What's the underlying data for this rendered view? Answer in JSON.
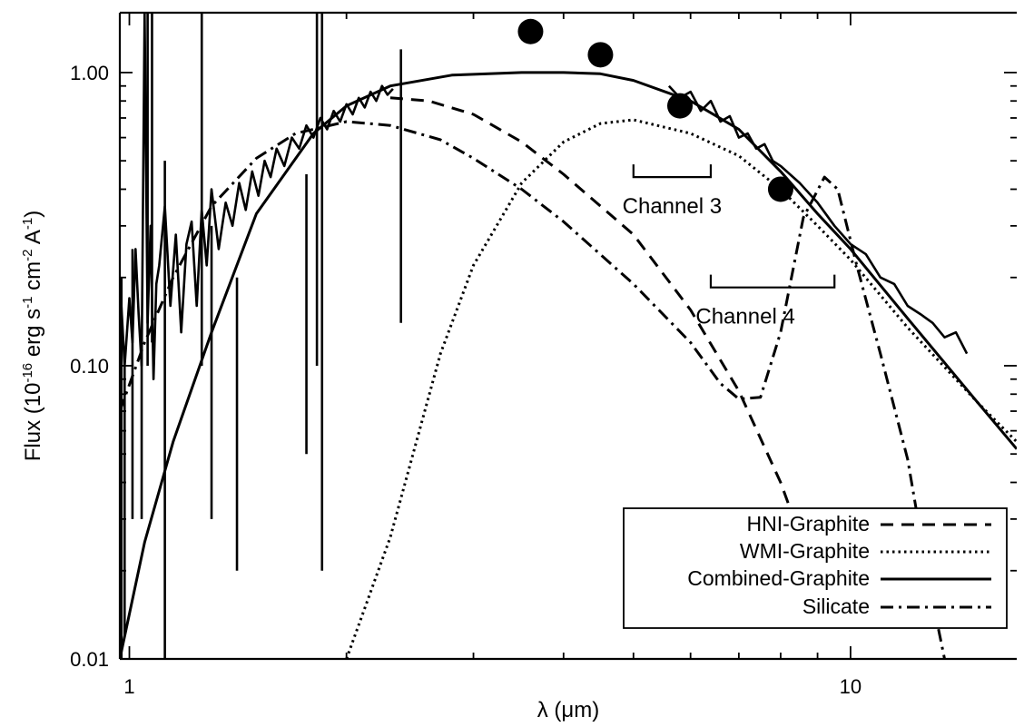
{
  "chart_data": {
    "type": "line",
    "title": "",
    "xlabel": "λ (μm)",
    "ylabel": "Flux (10",
    "ylabel_parts": {
      "base": "Flux (10",
      "exp1": "-16",
      "mid1": " erg s",
      "exp2": "-1",
      "mid2": " cm",
      "exp3": "-2",
      "mid3": " A",
      "exp4": "-1",
      "end": ")"
    },
    "x_scale": "log",
    "y_scale": "log",
    "xlim": [
      0.97,
      17
    ],
    "ylim": [
      0.01,
      1.6
    ],
    "x_ticks": [
      {
        "value": 1,
        "label": "1"
      },
      {
        "value": 10,
        "label": "10"
      }
    ],
    "y_ticks": [
      {
        "value": 0.01,
        "label": "0.01"
      },
      {
        "value": 0.1,
        "label": "0.10"
      },
      {
        "value": 1.0,
        "label": "1.00"
      }
    ],
    "grid": false,
    "legend_position": "bottom-right",
    "series": [
      {
        "name": "HNI-Graphite",
        "dash": "dashed",
        "x": [
          2.3,
          2.6,
          3.0,
          3.5,
          4.0,
          5.0,
          6.0,
          7.0,
          8.0,
          9.0
        ],
        "y": [
          0.82,
          0.8,
          0.72,
          0.58,
          0.45,
          0.28,
          0.155,
          0.082,
          0.04,
          0.018
        ]
      },
      {
        "name": "WMI-Graphite",
        "dash": "dotted",
        "x": [
          2.0,
          2.3,
          2.7,
          3.0,
          3.5,
          4.0,
          4.5,
          5.0,
          6.0,
          7.0,
          8.0,
          9.0,
          10.0,
          12.0,
          15.0,
          17.0
        ],
        "y": [
          0.01,
          0.026,
          0.11,
          0.22,
          0.42,
          0.58,
          0.67,
          0.69,
          0.62,
          0.52,
          0.4,
          0.3,
          0.23,
          0.135,
          0.075,
          0.055
        ]
      },
      {
        "name": "Combined-Graphite",
        "dash": "solid",
        "x": [
          0.97,
          1.05,
          1.15,
          1.3,
          1.5,
          1.8,
          2.0,
          2.3,
          2.8,
          3.5,
          4.0,
          4.5,
          5.0,
          6.0,
          7.0,
          8.0,
          9.0,
          10.0,
          12.0,
          15.0,
          17.0
        ],
        "y": [
          0.01,
          0.025,
          0.055,
          0.13,
          0.33,
          0.62,
          0.77,
          0.9,
          0.98,
          1.0,
          1.0,
          0.99,
          0.94,
          0.8,
          0.64,
          0.46,
          0.33,
          0.25,
          0.145,
          0.075,
          0.052
        ]
      },
      {
        "name": "Silicate",
        "dash": "dashdot",
        "x": [
          0.97,
          1.05,
          1.15,
          1.3,
          1.5,
          1.7,
          2.0,
          2.3,
          2.7,
          3.0,
          3.5,
          4.0,
          5.0,
          6.0,
          6.6,
          7.0,
          7.5,
          8.0,
          8.6,
          9.2,
          9.6,
          10.2,
          11.0,
          12.0,
          12.8,
          13.5
        ],
        "y": [
          0.07,
          0.12,
          0.2,
          0.35,
          0.51,
          0.62,
          0.68,
          0.66,
          0.59,
          0.51,
          0.4,
          0.31,
          0.19,
          0.12,
          0.087,
          0.077,
          0.078,
          0.13,
          0.32,
          0.44,
          0.4,
          0.22,
          0.11,
          0.048,
          0.019,
          0.01
        ]
      }
    ],
    "observed_spectrum": {
      "name": "",
      "x": [
        0.97,
        0.985,
        1.0,
        1.01,
        1.02,
        1.03,
        1.04,
        1.05,
        1.06,
        1.07,
        1.08,
        1.09,
        1.1,
        1.12,
        1.14,
        1.16,
        1.18,
        1.2,
        1.22,
        1.24,
        1.26,
        1.28,
        1.3,
        1.33,
        1.36,
        1.39,
        1.42,
        1.45,
        1.48,
        1.51,
        1.54,
        1.57,
        1.6,
        1.64,
        1.68,
        1.72,
        1.76,
        1.8,
        1.84,
        1.88,
        1.92,
        1.96,
        2.0,
        2.04,
        2.08,
        2.12,
        2.16,
        2.2,
        2.24,
        2.28,
        2.32
      ],
      "y": [
        0.2,
        0.1,
        0.17,
        0.12,
        0.25,
        0.15,
        0.1,
        1.6,
        0.14,
        0.3,
        0.09,
        0.19,
        0.22,
        0.35,
        0.16,
        0.28,
        0.13,
        0.26,
        0.31,
        0.16,
        0.34,
        0.22,
        0.4,
        0.25,
        0.36,
        0.3,
        0.42,
        0.34,
        0.46,
        0.38,
        0.5,
        0.44,
        0.55,
        0.48,
        0.6,
        0.55,
        0.66,
        0.6,
        0.7,
        0.64,
        0.74,
        0.68,
        0.78,
        0.72,
        0.82,
        0.76,
        0.86,
        0.8,
        0.9,
        0.84,
        0.88
      ],
      "x2": [
        5.6,
        5.8,
        6.0,
        6.2,
        6.4,
        6.6,
        6.8,
        7.0,
        7.2,
        7.4,
        7.6,
        7.8,
        8.0,
        8.5,
        9.0,
        9.5,
        10.0,
        10.5,
        11.0,
        11.5,
        12.0,
        12.5,
        13.0,
        13.5,
        14.0,
        14.5
      ],
      "y2": [
        0.9,
        0.82,
        0.86,
        0.74,
        0.8,
        0.68,
        0.71,
        0.6,
        0.62,
        0.55,
        0.57,
        0.5,
        0.48,
        0.42,
        0.36,
        0.3,
        0.26,
        0.24,
        0.2,
        0.19,
        0.16,
        0.15,
        0.14,
        0.125,
        0.13,
        0.11
      ]
    },
    "spikes": [
      {
        "x": 0.975,
        "y_low": 0.01,
        "y_high": 0.2
      },
      {
        "x": 0.985,
        "y_low": 0.012,
        "y_high": 0.1
      },
      {
        "x": 1.01,
        "y_low": 0.03,
        "y_high": 0.25
      },
      {
        "x": 1.04,
        "y_low": 0.03,
        "y_high": 0.13
      },
      {
        "x": 1.06,
        "y_low": 0.1,
        "y_high": 1.6
      },
      {
        "x": 1.075,
        "y_low": 0.12,
        "y_high": 1.6
      },
      {
        "x": 1.12,
        "y_low": 0.01,
        "y_high": 0.5
      },
      {
        "x": 1.26,
        "y_low": 0.1,
        "y_high": 1.6
      },
      {
        "x": 1.3,
        "y_low": 0.03,
        "y_high": 0.3
      },
      {
        "x": 1.41,
        "y_low": 0.02,
        "y_high": 0.2
      },
      {
        "x": 1.76,
        "y_low": 0.05,
        "y_high": 0.45
      },
      {
        "x": 1.82,
        "y_low": 0.1,
        "y_high": 1.6
      },
      {
        "x": 1.85,
        "y_low": 0.02,
        "y_high": 1.6
      },
      {
        "x": 2.38,
        "y_low": 0.14,
        "y_high": 1.2
      }
    ],
    "photometry_points": [
      {
        "x": 3.6,
        "y": 1.38
      },
      {
        "x": 4.5,
        "y": 1.15
      },
      {
        "x": 5.8,
        "y": 0.77
      },
      {
        "x": 8.0,
        "y": 0.4
      }
    ],
    "annotations": [
      {
        "label": "Channel 3",
        "x_start": 5.0,
        "x_end": 6.4,
        "y": 0.44
      },
      {
        "label": "Channel 4",
        "x_start": 6.4,
        "x_end": 9.5,
        "y": 0.185
      }
    ],
    "legend_entries": [
      "HNI-Graphite",
      "WMI-Graphite",
      "Combined-Graphite",
      "Silicate"
    ]
  }
}
